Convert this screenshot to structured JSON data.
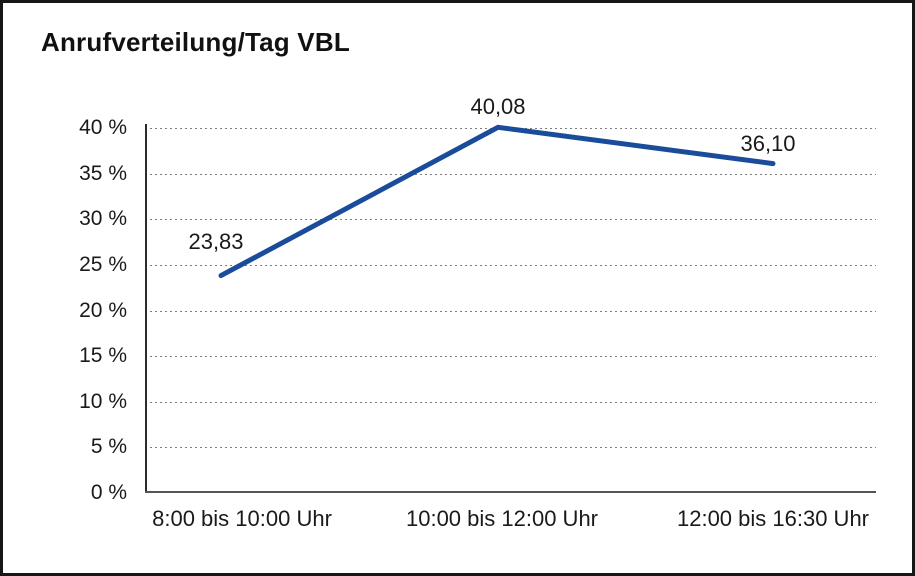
{
  "chart_data": {
    "type": "line",
    "title": "Anrufverteilung/Tag VBL",
    "categories": [
      "8:00 bis 10:00 Uhr",
      "10:00 bis 12:00 Uhr",
      "12:00 bis 16:30 Uhr"
    ],
    "values": [
      23.83,
      40.08,
      36.1
    ],
    "value_labels": [
      "23,83",
      "40,08",
      "36,10"
    ],
    "y_ticks": [
      "40 %",
      "35 %",
      "30 %",
      "25 %",
      "20 %",
      "15 %",
      "10 %",
      "5 %",
      "0 %"
    ],
    "ylim": [
      0,
      40
    ],
    "y_step": 5,
    "grid": "horizontal-dotted",
    "legend": "none",
    "line_color": "#1a4c9b",
    "text_color": "#1a1a1a",
    "frame_color": "#161616"
  }
}
